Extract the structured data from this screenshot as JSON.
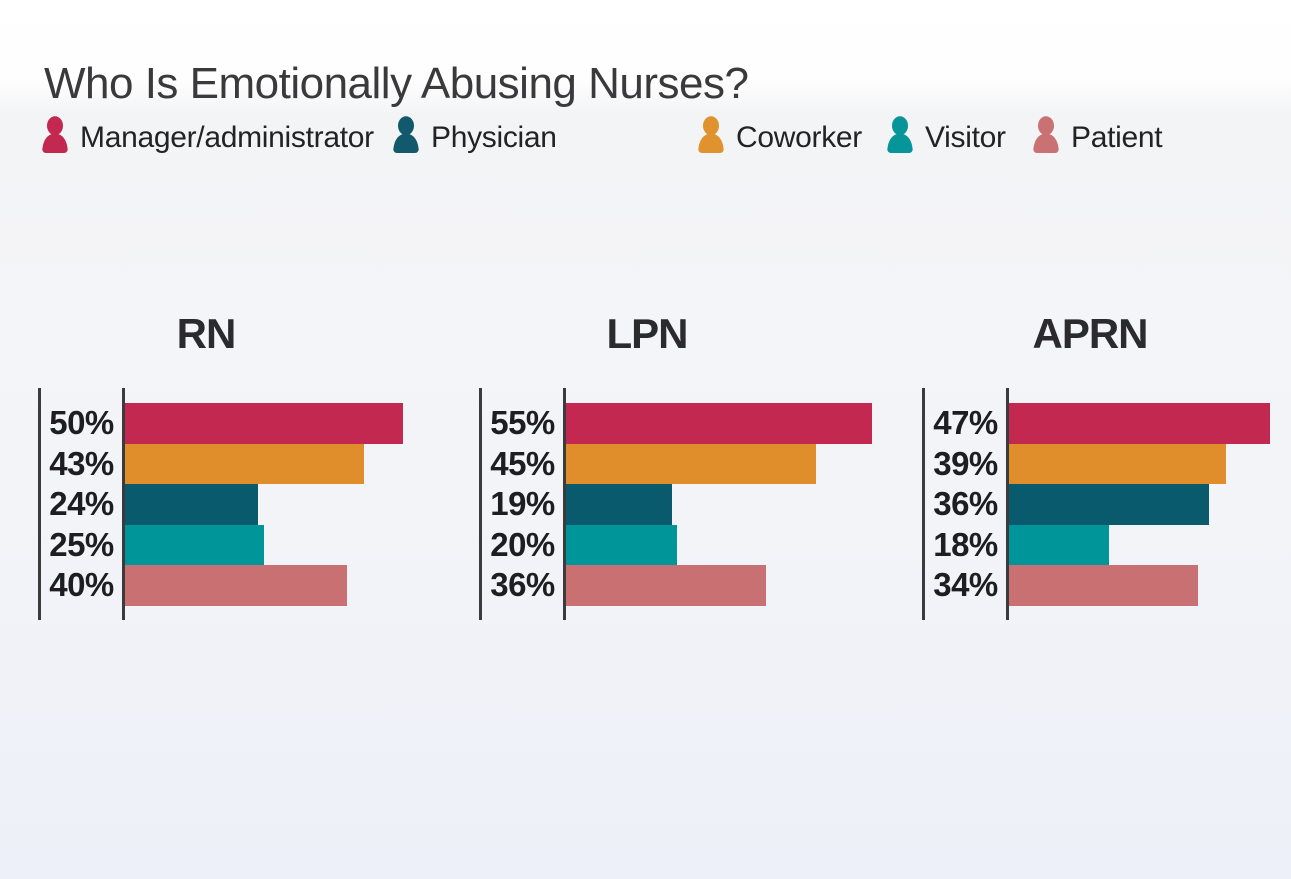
{
  "title": "Who Is Emotionally Abusing Nurses?",
  "legend": {
    "items": [
      {
        "label": "Manager/administrator",
        "color": "#c22850"
      },
      {
        "label": "Physician",
        "color": "#12596d"
      },
      {
        "label": "Coworker",
        "color": "#e0922f"
      },
      {
        "label": "Visitor",
        "color": "#069599"
      },
      {
        "label": "Patient",
        "color": "#c97173"
      }
    ]
  },
  "charts": [
    {
      "title": "RN",
      "bars": [
        {
          "series": "Manager/administrator",
          "label": "50%",
          "value": 50,
          "color": "#c22850"
        },
        {
          "series": "Coworker",
          "label": "43%",
          "value": 43,
          "color": "#e08e2b"
        },
        {
          "series": "Physician",
          "label": "24%",
          "value": 24,
          "color": "#0a5a6e"
        },
        {
          "series": "Visitor",
          "label": "25%",
          "value": 25,
          "color": "#009598"
        },
        {
          "series": "Patient",
          "label": "40%",
          "value": 40,
          "color": "#c97172"
        }
      ]
    },
    {
      "title": "LPN",
      "bars": [
        {
          "series": "Manager/administrator",
          "label": "55%",
          "value": 55,
          "color": "#c22850"
        },
        {
          "series": "Coworker",
          "label": "45%",
          "value": 45,
          "color": "#e08e2b"
        },
        {
          "series": "Physician",
          "label": "19%",
          "value": 19,
          "color": "#0a5a6e"
        },
        {
          "series": "Visitor",
          "label": "20%",
          "value": 20,
          "color": "#009598"
        },
        {
          "series": "Patient",
          "label": "36%",
          "value": 36,
          "color": "#c97172"
        }
      ]
    },
    {
      "title": "APRN",
      "bars": [
        {
          "series": "Manager/administrator",
          "label": "47%",
          "value": 47,
          "color": "#c22850"
        },
        {
          "series": "Coworker",
          "label": "39%",
          "value": 39,
          "color": "#e08e2b"
        },
        {
          "series": "Physician",
          "label": "36%",
          "value": 36,
          "color": "#0a5a6e"
        },
        {
          "series": "Visitor",
          "label": "18%",
          "value": 18,
          "color": "#009598"
        },
        {
          "series": "Patient",
          "label": "34%",
          "value": 34,
          "color": "#c97172"
        }
      ]
    }
  ],
  "chart_data": {
    "type": "bar",
    "orientation": "horizontal",
    "title": "Who Is Emotionally Abusing Nurses?",
    "legend_position": "top",
    "legend": [
      "Manager/administrator",
      "Physician",
      "Coworker",
      "Visitor",
      "Patient"
    ],
    "groups": [
      "RN",
      "LPN",
      "APRN"
    ],
    "bar_order_top_to_bottom": [
      "Manager/administrator",
      "Coworker",
      "Physician",
      "Visitor",
      "Patient"
    ],
    "series": [
      {
        "name": "Manager/administrator",
        "color": "#c22850",
        "values": {
          "RN": 50,
          "LPN": 55,
          "APRN": 47
        }
      },
      {
        "name": "Physician",
        "color": "#0a5a6e",
        "values": {
          "RN": 24,
          "LPN": 19,
          "APRN": 36
        }
      },
      {
        "name": "Coworker",
        "color": "#e08e2b",
        "values": {
          "RN": 43,
          "LPN": 45,
          "APRN": 39
        }
      },
      {
        "name": "Visitor",
        "color": "#009598",
        "values": {
          "RN": 25,
          "LPN": 20,
          "APRN": 18
        }
      },
      {
        "name": "Patient",
        "color": "#c97172",
        "values": {
          "RN": 40,
          "LPN": 36,
          "APRN": 34
        }
      }
    ],
    "value_unit": "%",
    "value_labels": "left of bars, bold",
    "xlim": [
      0,
      60
    ],
    "grid": false
  }
}
